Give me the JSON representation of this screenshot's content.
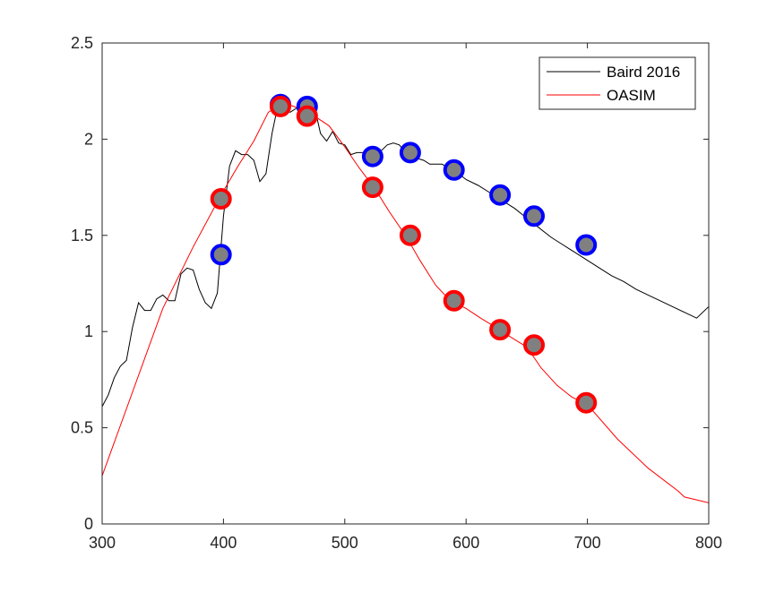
{
  "chart_data": {
    "type": "line",
    "title": "",
    "xlabel": "",
    "ylabel": "",
    "xlim": [
      300,
      800
    ],
    "ylim": [
      0,
      2.5
    ],
    "xticks": [
      300,
      400,
      500,
      600,
      700,
      800
    ],
    "yticks": [
      0,
      0.5,
      1,
      1.5,
      2,
      2.5
    ],
    "xtick_labels": [
      "300",
      "400",
      "500",
      "600",
      "700",
      "800"
    ],
    "ytick_labels": [
      "0",
      "0.5",
      "1",
      "1.5",
      "2",
      "2.5"
    ],
    "grid": false,
    "legend_position": "top-right",
    "series": [
      {
        "name": "Baird 2016",
        "color": "#000000",
        "x": [
          300,
          305,
          310,
          315,
          320,
          325,
          330,
          335,
          340,
          345,
          350,
          355,
          360,
          365,
          370,
          375,
          380,
          385,
          390,
          395,
          400,
          405,
          410,
          415,
          420,
          425,
          430,
          435,
          440,
          445,
          450,
          455,
          460,
          465,
          470,
          475,
          480,
          485,
          490,
          495,
          500,
          505,
          510,
          515,
          520,
          525,
          530,
          535,
          540,
          545,
          550,
          555,
          560,
          565,
          570,
          580,
          590,
          600,
          610,
          620,
          630,
          640,
          650,
          660,
          670,
          680,
          690,
          700,
          710,
          720,
          730,
          740,
          750,
          760,
          770,
          780,
          790,
          800
        ],
        "y": [
          0.61,
          0.67,
          0.76,
          0.82,
          0.85,
          1.02,
          1.15,
          1.11,
          1.11,
          1.17,
          1.19,
          1.16,
          1.16,
          1.3,
          1.33,
          1.32,
          1.22,
          1.15,
          1.12,
          1.2,
          1.6,
          1.86,
          1.94,
          1.92,
          1.92,
          1.89,
          1.78,
          1.82,
          2.03,
          2.18,
          2.15,
          2.14,
          2.16,
          2.17,
          2.16,
          2.17,
          2.03,
          1.99,
          2.04,
          1.98,
          1.97,
          1.92,
          1.93,
          1.93,
          1.9,
          1.92,
          1.94,
          1.97,
          1.98,
          1.97,
          1.93,
          1.91,
          1.9,
          1.89,
          1.87,
          1.87,
          1.84,
          1.79,
          1.76,
          1.72,
          1.68,
          1.64,
          1.59,
          1.54,
          1.49,
          1.45,
          1.41,
          1.37,
          1.33,
          1.29,
          1.26,
          1.22,
          1.19,
          1.16,
          1.13,
          1.1,
          1.07,
          1.13
        ]
      },
      {
        "name": "OASIM",
        "color": "#ff0000",
        "x": [
          300,
          350,
          375,
          398,
          412,
          425,
          437,
          450,
          462,
          475,
          487,
          500,
          512,
          525,
          537,
          550,
          562,
          575,
          587,
          600,
          612,
          625,
          637,
          650,
          662,
          675,
          687,
          700,
          725,
          750,
          775,
          780,
          800
        ],
        "y": [
          0.25,
          1.12,
          1.44,
          1.71,
          1.86,
          1.99,
          2.14,
          2.19,
          2.16,
          2.12,
          2.07,
          1.96,
          1.85,
          1.74,
          1.62,
          1.5,
          1.37,
          1.24,
          1.16,
          1.12,
          1.07,
          1.02,
          0.97,
          0.92,
          0.81,
          0.72,
          0.66,
          0.62,
          0.44,
          0.29,
          0.17,
          0.14,
          0.11
        ]
      }
    ],
    "markers": {
      "Baird 2016": {
        "edge_color": "#0000ff",
        "fill_color": "#808080",
        "x": [
          398,
          447,
          469,
          523,
          554,
          590,
          628,
          656,
          699
        ],
        "y": [
          1.4,
          2.18,
          2.17,
          1.91,
          1.93,
          1.84,
          1.71,
          1.6,
          1.45
        ]
      },
      "OASIM": {
        "edge_color": "#ff0000",
        "fill_color": "#808080",
        "x": [
          398,
          447,
          469,
          523,
          554,
          590,
          628,
          656,
          699
        ],
        "y": [
          1.69,
          2.17,
          2.12,
          1.75,
          1.5,
          1.16,
          1.01,
          0.93,
          0.63
        ]
      }
    }
  }
}
